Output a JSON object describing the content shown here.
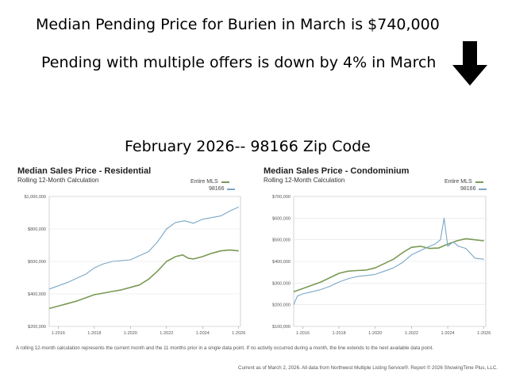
{
  "headlines": {
    "line1": "Median Pending Price for Burien in March is $740,000",
    "line2": "Pending with multiple offers is down by 4% in March",
    "line3": "February 2026-- 98166 Zip Code"
  },
  "colors": {
    "entire_mls": "#7a9a55",
    "zip": "#79a7c7",
    "arrow": "#000000"
  },
  "charts": [
    {
      "title": "Median Sales Price - Residential",
      "subtitle": "Rolling 12-Month Calculation",
      "legend": [
        "Entire MLS",
        "98166"
      ],
      "yticks": [
        "$1,000,000",
        "$800,000",
        "$600,000",
        "$400,000",
        "$200,000"
      ],
      "xticks": [
        "1-2016",
        "1-2018",
        "1-2020",
        "1-2022",
        "1-2024",
        "1-2026"
      ]
    },
    {
      "title": "Median Sales Price - Condominium",
      "subtitle": "Rolling 12-Month Calculation",
      "legend": [
        "Entire MLS",
        "98166"
      ],
      "yticks": [
        "$700,000",
        "$600,000",
        "$500,000",
        "$400,000",
        "$300,000",
        "$200,000",
        "$100,000"
      ],
      "xticks": [
        "1-2016",
        "1-2018",
        "1-2020",
        "1-2022",
        "1-2024",
        "1-2026"
      ]
    }
  ],
  "footnote": "A rolling 12-month calculation represents the current month and the 11 months prior in a single data point. If no activity occurred during a month, the line extends to the next available data point.",
  "source": "Current as of March 2, 2026. All data from Northwest Multiple Listing Service®. Report © 2026 ShowingTime Plus, LLC.",
  "chart_data": [
    {
      "type": "line",
      "title": "Median Sales Price - Residential",
      "subtitle": "Rolling 12-Month Calculation",
      "ylim": [
        200000,
        1000000
      ],
      "xlim": [
        2015.5,
        2026.1
      ],
      "series": [
        {
          "name": "Entire MLS",
          "x": [
            2015.5,
            2016,
            2016.5,
            2017,
            2017.5,
            2018,
            2018.5,
            2019,
            2019.5,
            2020,
            2020.5,
            2021,
            2021.5,
            2022,
            2022.5,
            2022.9,
            2023.2,
            2023.5,
            2024,
            2024.5,
            2025,
            2025.5,
            2026
          ],
          "values": [
            310000,
            325000,
            340000,
            355000,
            375000,
            395000,
            405000,
            415000,
            425000,
            440000,
            455000,
            490000,
            540000,
            600000,
            630000,
            640000,
            620000,
            615000,
            630000,
            650000,
            665000,
            670000,
            665000
          ]
        },
        {
          "name": "98166",
          "x": [
            2015.5,
            2016,
            2016.5,
            2017,
            2017.5,
            2018,
            2018.5,
            2019,
            2019.5,
            2020,
            2020.5,
            2021,
            2021.5,
            2022,
            2022.5,
            2023,
            2023.5,
            2024,
            2024.5,
            2025,
            2025.5,
            2026
          ],
          "values": [
            430000,
            450000,
            470000,
            495000,
            520000,
            560000,
            585000,
            600000,
            605000,
            610000,
            635000,
            660000,
            720000,
            800000,
            840000,
            850000,
            835000,
            860000,
            870000,
            880000,
            910000,
            935000
          ]
        }
      ]
    },
    {
      "type": "line",
      "title": "Median Sales Price - Condominium",
      "subtitle": "Rolling 12-Month Calculation",
      "ylim": [
        100000,
        700000
      ],
      "xlim": [
        2015.5,
        2026.1
      ],
      "series": [
        {
          "name": "Entire MLS",
          "x": [
            2015.5,
            2016,
            2016.5,
            2017,
            2017.5,
            2018,
            2018.5,
            2019,
            2019.5,
            2020,
            2020.5,
            2021,
            2021.5,
            2022,
            2022.5,
            2023,
            2023.5,
            2024,
            2024.5,
            2025,
            2025.5,
            2026
          ],
          "values": [
            260000,
            275000,
            290000,
            305000,
            325000,
            345000,
            355000,
            358000,
            360000,
            370000,
            390000,
            410000,
            440000,
            465000,
            470000,
            460000,
            462000,
            480000,
            495000,
            505000,
            500000,
            495000
          ]
        },
        {
          "name": "98166",
          "x": [
            2015.5,
            2015.7,
            2016,
            2016.5,
            2017,
            2017.5,
            2018,
            2018.5,
            2019,
            2019.5,
            2020,
            2020.5,
            2021,
            2021.5,
            2022,
            2022.5,
            2023,
            2023.3,
            2023.6,
            2023.8,
            2024,
            2024.3,
            2024.6,
            2025,
            2025.5,
            2026
          ],
          "values": [
            200000,
            240000,
            250000,
            260000,
            270000,
            285000,
            305000,
            320000,
            330000,
            335000,
            340000,
            355000,
            370000,
            395000,
            430000,
            450000,
            470000,
            480000,
            500000,
            600000,
            470000,
            490000,
            470000,
            460000,
            415000,
            410000
          ]
        }
      ]
    }
  ]
}
